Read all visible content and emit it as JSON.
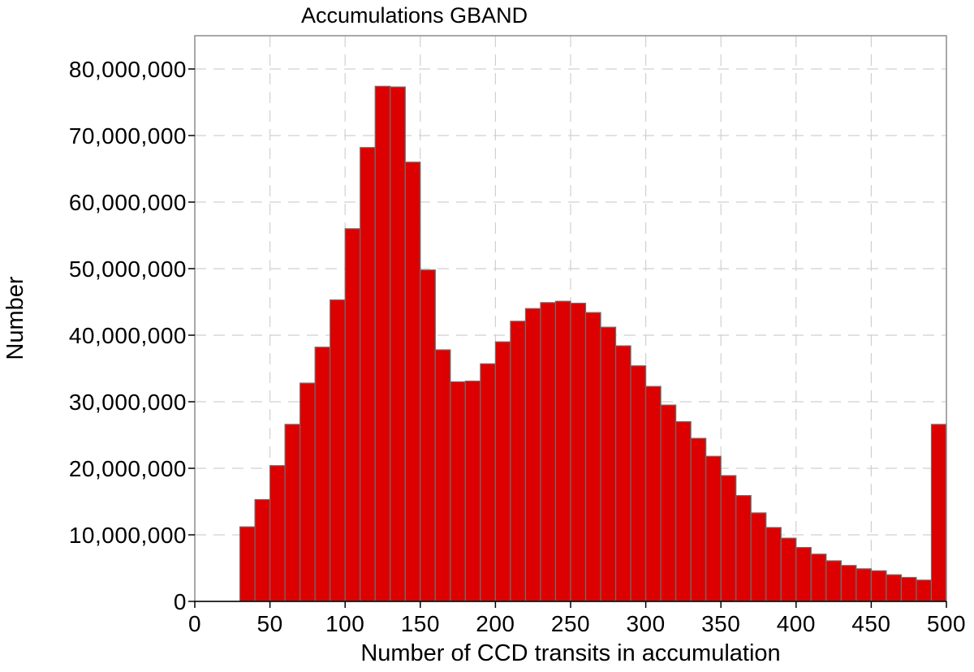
{
  "chart_data": {
    "type": "bar",
    "title": "Accumulations GBAND",
    "xlabel": "Number of CCD transits in accumulation",
    "ylabel": "Number",
    "xlim": [
      0,
      500
    ],
    "ylim": [
      0,
      85000000
    ],
    "grid": true,
    "x_ticks": [
      0,
      50,
      100,
      150,
      200,
      250,
      300,
      350,
      400,
      450,
      500
    ],
    "x_tick_labels": [
      "0",
      "50",
      "100",
      "150",
      "200",
      "250",
      "300",
      "350",
      "400",
      "450",
      "500"
    ],
    "y_ticks": [
      0,
      10000000,
      20000000,
      30000000,
      40000000,
      50000000,
      60000000,
      70000000,
      80000000
    ],
    "y_tick_labels": [
      "0",
      "10,000,000",
      "20,000,000",
      "30,000,000",
      "40,000,000",
      "50,000,000",
      "60,000,000",
      "70,000,000",
      "80,000,000"
    ],
    "bin_width": 10,
    "bin_starts": [
      30,
      40,
      50,
      60,
      70,
      80,
      90,
      100,
      110,
      120,
      130,
      140,
      150,
      160,
      170,
      180,
      190,
      200,
      210,
      220,
      230,
      240,
      250,
      260,
      270,
      280,
      290,
      300,
      310,
      320,
      330,
      340,
      350,
      360,
      370,
      380,
      390,
      400,
      410,
      420,
      430,
      440,
      450,
      460,
      470,
      480,
      490
    ],
    "values": [
      11200000,
      15300000,
      20400000,
      26600000,
      32800000,
      38200000,
      45300000,
      56000000,
      68200000,
      77400000,
      77300000,
      66000000,
      49800000,
      37800000,
      33000000,
      33100000,
      35700000,
      39000000,
      42100000,
      44000000,
      44900000,
      45100000,
      44800000,
      43400000,
      41200000,
      38400000,
      35400000,
      32300000,
      29500000,
      27000000,
      24500000,
      21800000,
      18900000,
      15900000,
      13300000,
      11100000,
      9500000,
      8100000,
      7100000,
      6100000,
      5400000,
      4900000,
      4600000,
      4000000,
      3600000,
      3200000,
      26600000
    ],
    "colors": {
      "bar": "#dd0000",
      "bar_edge": "#6e6e6e",
      "grid": "#d0d0d0"
    }
  }
}
